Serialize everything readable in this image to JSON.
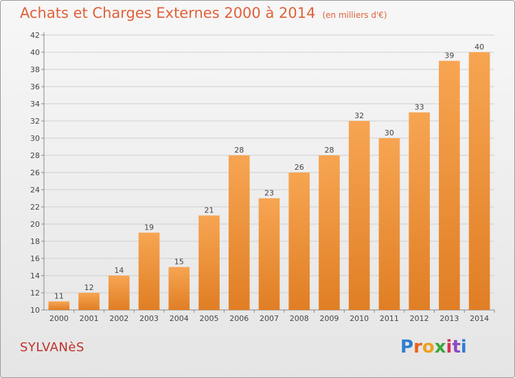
{
  "title": "Achats et Charges Externes 2000 à 2014",
  "unit_label": "(en milliers d'€)",
  "town": "SYLVANèS",
  "logo_text": "Proxiti",
  "chart_data": {
    "type": "bar",
    "categories": [
      "2000",
      "2001",
      "2002",
      "2003",
      "2004",
      "2005",
      "2006",
      "2007",
      "2008",
      "2009",
      "2010",
      "2011",
      "2012",
      "2013",
      "2014"
    ],
    "values": [
      11,
      12,
      14,
      19,
      15,
      21,
      28,
      23,
      26,
      28,
      32,
      30,
      33,
      39,
      40
    ],
    "ylim": [
      10,
      42
    ],
    "yticks": [
      10,
      12,
      14,
      16,
      18,
      20,
      22,
      24,
      26,
      28,
      30,
      32,
      34,
      36,
      38,
      40,
      42
    ],
    "grid": true,
    "bar_color": "#f29a45"
  }
}
